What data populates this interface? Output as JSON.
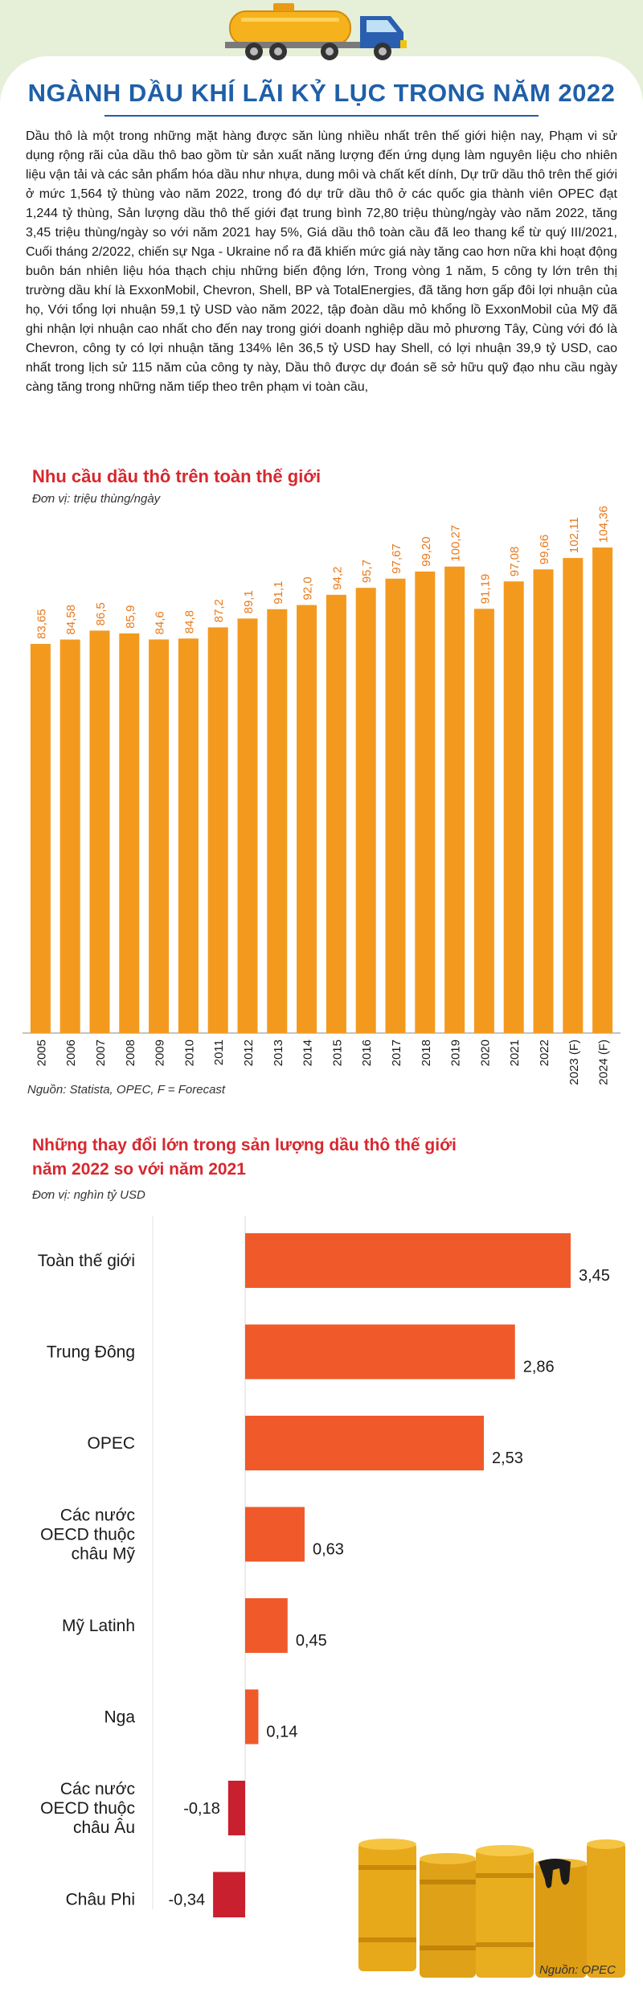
{
  "headline": "NGÀNH DẦU KHÍ LÃI KỶ LỤC TRONG NĂM 2022",
  "intro": "Dầu thô là một trong những mặt hàng được săn lùng nhiều nhất trên thế giới hiện nay, Phạm vi sử dụng rộng rãi của dầu thô bao gồm từ sản xuất năng lượng đến ứng dụng làm nguyên liệu cho nhiên liệu vận tải và các sản phẩm hóa dầu như nhựa, dung môi và chất kết dính, Dự trữ dầu thô trên thế giới ở mức 1,564 tỷ thùng vào năm 2022, trong đó dự trữ dầu thô ở các quốc gia thành viên OPEC đạt 1,244 tỷ thùng, Sản lượng dầu thô thế giới đạt trung bình 72,80 triệu thùng/ngày vào năm 2022, tăng 3,45 triệu thùng/ngày so với năm 2021 hay 5%, Giá dầu thô toàn cầu đã leo thang kể từ quý III/2021, Cuối tháng 2/2022, chiến sự Nga - Ukraine nổ ra đã khiến mức giá này tăng cao hơn nữa khi hoạt động buôn bán nhiên liệu hóa thạch chịu những biến động lớn, Trong vòng 1 năm, 5 công ty lớn trên thị trường dầu khí là ExxonMobil, Chevron, Shell, BP và TotalEnergies, đã tăng hơn gấp đôi lợi nhuận của họ, Với tổng lợi nhuận 59,1 tỷ USD vào năm 2022, tập đoàn dầu mỏ khổng lồ ExxonMobil của Mỹ đã ghi nhận lợi nhuận cao nhất cho đến nay trong giới doanh nghiệp dầu mỏ phương Tây, Cùng với đó là Chevron, công ty có lợi nhuận tăng 134% lên 36,5 tỷ USD hay Shell, có lợi nhuận 39,9 tỷ USD, cao nhất trong lịch sử 115 năm của công ty này, Dầu thô được dự đoán sẽ sở hữu quỹ đạo nhu cầu ngày càng tăng trong những năm tiếp theo trên phạm vi toàn cầu,",
  "colors": {
    "title_red": "#d7282f",
    "headline_blue": "#1f5fa8",
    "demand_bar": "#f39a1e",
    "positive_bar": "#f05a2a",
    "negative_bar": "#c8202f",
    "page_bg": "#e6efd7"
  },
  "icons": [
    "tanker-truck-icon",
    "oil-barrels-illustration"
  ],
  "chart_data": [
    {
      "type": "bar",
      "title": "Nhu cầu dầu thô trên toàn thế giới",
      "unit": "Đơn vị: triệu thùng/ngày",
      "categories": [
        "2005",
        "2006",
        "2007",
        "2008",
        "2009",
        "2010",
        "2011",
        "2012",
        "2013",
        "2014",
        "2015",
        "2016",
        "2017",
        "2018",
        "2019",
        "2020",
        "2021",
        "2022",
        "2023 (F)",
        "2024 (F)"
      ],
      "values": [
        83.65,
        84.58,
        86.5,
        85.9,
        84.6,
        84.8,
        87.2,
        89.1,
        91.1,
        92.0,
        94.2,
        95.7,
        97.67,
        99.2,
        100.27,
        91.19,
        97.08,
        99.66,
        102.11,
        104.36
      ],
      "value_labels": [
        "83,65",
        "84,58",
        "86,5",
        "85,9",
        "84,6",
        "84,8",
        "87,2",
        "89,1",
        "91,1",
        "92,0",
        "94,2",
        "95,7",
        "97,67",
        "99,20",
        "100,27",
        "91,19",
        "97,08",
        "99,66",
        "102,11",
        "104,36"
      ],
      "ylim": [
        0,
        108
      ],
      "grid": false,
      "source": "Nguồn: Statista, OPEC, F = Forecast"
    },
    {
      "type": "bar",
      "orientation": "horizontal",
      "title": "Những thay đổi lớn trong sản lượng dầu thô thế giới năm 2022 so với năm 2021",
      "unit": "Đơn vị: nghìn tỷ USD",
      "categories": [
        "Toàn thế giới",
        "Trung Đông",
        "OPEC",
        "Các nước OECD thuộc châu Mỹ",
        "Mỹ Latinh",
        "Nga",
        "Các nước OECD thuộc châu Âu",
        "Châu Phi"
      ],
      "values": [
        3.45,
        2.86,
        2.53,
        0.63,
        0.45,
        0.14,
        -0.18,
        -0.34
      ],
      "value_labels": [
        "3,45",
        "2,86",
        "2,53",
        "0,63",
        "0,45",
        "0,14",
        "-0,18",
        "-0,34"
      ],
      "xlim": [
        -0.4,
        3.5
      ],
      "grid": false,
      "source": "Nguồn: OPEC"
    }
  ]
}
